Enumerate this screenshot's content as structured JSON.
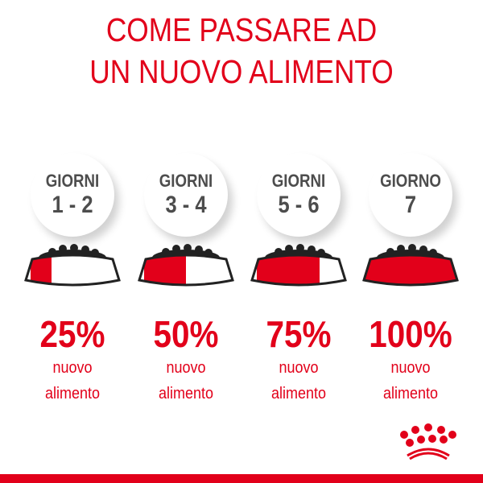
{
  "title": {
    "line1": "COME PASSARE AD",
    "line2": "UN NUOVO ALIMENTO"
  },
  "colors": {
    "accent": "#e2001a",
    "text_gray": "#4d4d4d"
  },
  "steps": [
    {
      "label": "GIORNI",
      "days": "1 - 2",
      "percent": "25%",
      "fraction": 0.25,
      "text1": "nuovo",
      "text2": "alimento"
    },
    {
      "label": "GIORNI",
      "days": "3 - 4",
      "percent": "50%",
      "fraction": 0.5,
      "text1": "nuovo",
      "text2": "alimento"
    },
    {
      "label": "GIORNI",
      "days": "5 - 6",
      "percent": "75%",
      "fraction": 0.75,
      "text1": "nuovo",
      "text2": "alimento"
    },
    {
      "label": "GIORNO",
      "days": "7",
      "percent": "100%",
      "fraction": 1.0,
      "text1": "nuovo",
      "text2": "alimento"
    }
  ],
  "logo": {
    "icon": "royal-canin-crown-logo"
  }
}
